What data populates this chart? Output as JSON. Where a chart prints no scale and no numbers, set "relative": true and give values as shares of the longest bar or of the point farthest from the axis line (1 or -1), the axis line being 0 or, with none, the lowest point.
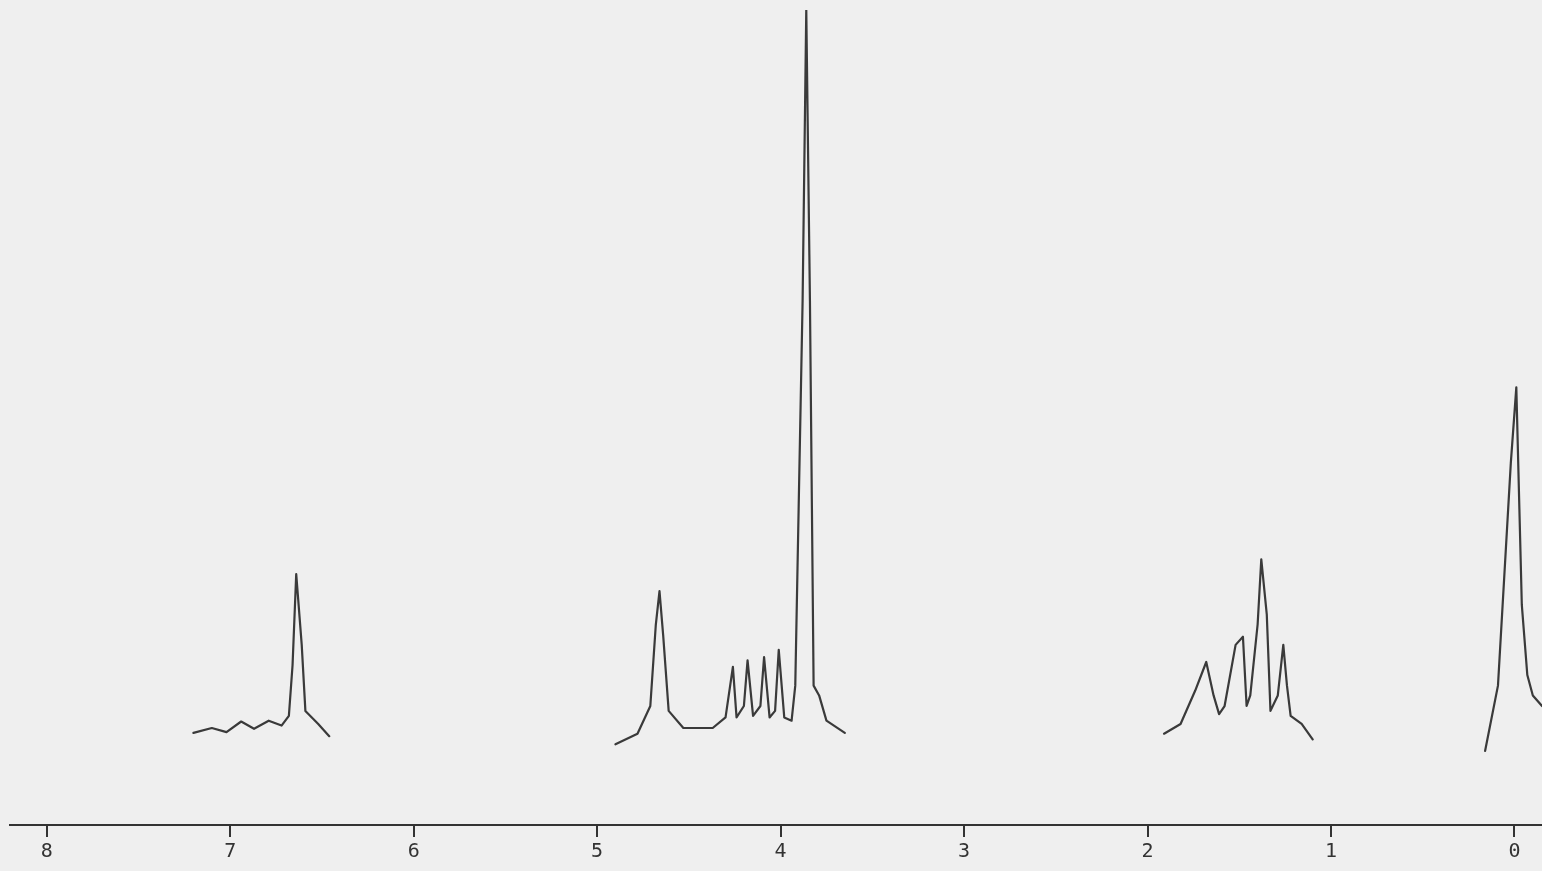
{
  "chart_data": {
    "type": "line",
    "relative": true,
    "xlim": [
      8.2,
      -0.15
    ],
    "xticks": [
      8,
      7,
      6,
      5,
      4,
      3,
      2,
      1,
      0
    ],
    "marker": "none",
    "series": [
      {
        "color": "#3a3a3a",
        "x": [
          7.2,
          7.1,
          7.02,
          6.94,
          6.87,
          6.79,
          6.72,
          6.68,
          6.66,
          6.64,
          6.61,
          6.59,
          6.52,
          6.46
        ],
        "values": [
          0.113,
          0.119,
          0.114,
          0.127,
          0.118,
          0.128,
          0.122,
          0.134,
          0.196,
          0.308,
          0.221,
          0.14,
          0.124,
          0.109
        ]
      },
      {
        "color": "#3a3a3a",
        "x": [
          4.9,
          4.78,
          4.71,
          4.68,
          4.66,
          4.64,
          4.61,
          4.53,
          4.37,
          4.3,
          4.26,
          4.24,
          4.2,
          4.18,
          4.15,
          4.11,
          4.09,
          4.06,
          4.03,
          4.01,
          3.98,
          3.94,
          3.92,
          3.88,
          3.86,
          3.84,
          3.82,
          3.79,
          3.75,
          3.65
        ],
        "values": [
          0.099,
          0.112,
          0.146,
          0.246,
          0.287,
          0.233,
          0.14,
          0.119,
          0.119,
          0.132,
          0.194,
          0.132,
          0.146,
          0.202,
          0.134,
          0.146,
          0.206,
          0.132,
          0.14,
          0.215,
          0.132,
          0.128,
          0.171,
          0.643,
          1,
          0.643,
          0.171,
          0.159,
          0.128,
          0.113
        ]
      },
      {
        "color": "#3a3a3a",
        "x": [
          1.91,
          1.82,
          1.74,
          1.68,
          1.64,
          1.61,
          1.58,
          1.52,
          1.48,
          1.46,
          1.44,
          1.4,
          1.38,
          1.35,
          1.33,
          1.29,
          1.26,
          1.24,
          1.22,
          1.16,
          1.1
        ],
        "values": [
          0.112,
          0.124,
          0.165,
          0.2,
          0.159,
          0.136,
          0.146,
          0.221,
          0.231,
          0.146,
          0.159,
          0.246,
          0.326,
          0.258,
          0.14,
          0.159,
          0.221,
          0.171,
          0.134,
          0.124,
          0.105
        ]
      },
      {
        "color": "#3a3a3a",
        "x": [
          0.16,
          0.09,
          0.02,
          -0.01,
          -0.04,
          -0.07,
          -0.1,
          -0.15
        ],
        "values": [
          0.091,
          0.171,
          0.444,
          0.537,
          0.27,
          0.184,
          0.159,
          0.146
        ]
      }
    ]
  }
}
